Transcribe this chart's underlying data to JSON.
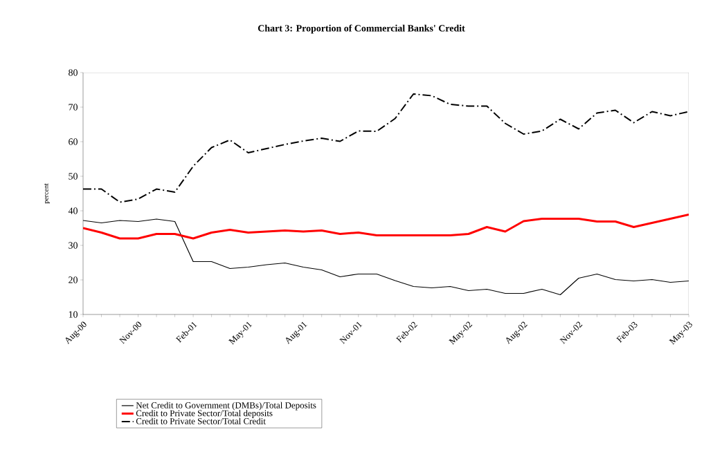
{
  "chart_data": {
    "type": "line",
    "title": "Chart 3: Proportion of Commercial Banks' Credit",
    "ylabel": "percent",
    "categories": [
      "Aug-00",
      null,
      null,
      "Nov-00",
      null,
      null,
      "Feb-01",
      null,
      null,
      "May-01",
      null,
      null,
      "Aug-01",
      null,
      null,
      "Nov-01",
      null,
      null,
      "Feb-02",
      null,
      null,
      "May-02",
      null,
      null,
      "Aug-02",
      null,
      null,
      "Nov-02",
      null,
      null,
      "Feb-03",
      null,
      null,
      "May-03"
    ],
    "ylim": [
      10,
      80
    ],
    "yticks": [
      10,
      20,
      30,
      40,
      50,
      60,
      70,
      80
    ],
    "grid": false,
    "legend": "bottom",
    "marker": "none",
    "series": [
      {
        "name": "Net Credit to Government (DMBs)/Total Deposits",
        "color": "#000000",
        "line_style": "solid",
        "values": [
          37.2,
          36.5,
          37.2,
          36.9,
          37.6,
          36.9,
          25.3,
          25.3,
          23.3,
          23.7,
          24.4,
          24.9,
          23.7,
          22.9,
          20.9,
          21.7,
          21.7,
          19.8,
          18.1,
          17.7,
          18.1,
          16.9,
          17.3,
          16.1,
          16.1,
          17.3,
          15.7,
          20.5,
          21.7,
          20.1,
          19.7,
          20.1,
          19.3,
          19.7
        ]
      },
      {
        "name": "Credit to Private Sector/Total deposits",
        "color": "#ff0000",
        "line_style": "solid",
        "values": [
          35.0,
          33.7,
          32.0,
          32.0,
          33.3,
          33.3,
          32.0,
          33.7,
          34.5,
          33.7,
          34.0,
          34.3,
          34.0,
          34.3,
          33.3,
          33.7,
          32.9,
          32.9,
          32.9,
          32.9,
          32.9,
          33.3,
          35.3,
          34.0,
          37.0,
          37.7,
          37.7,
          37.7,
          36.9,
          36.9,
          35.3,
          36.5,
          37.7,
          38.9
        ]
      },
      {
        "name": "Credit to Private Sector/Total Credit",
        "color": "#000000",
        "line_style": "dashdot",
        "values": [
          46.3,
          46.3,
          42.5,
          43.4,
          46.3,
          45.4,
          52.9,
          58.3,
          60.5,
          56.8,
          58.0,
          59.2,
          60.2,
          61.0,
          60.1,
          63.1,
          63.0,
          66.7,
          73.8,
          73.3,
          70.8,
          70.3,
          70.3,
          65.3,
          62.2,
          63.1,
          66.5,
          63.7,
          68.3,
          69.1,
          65.5,
          68.7,
          67.5,
          68.7
        ]
      }
    ]
  }
}
